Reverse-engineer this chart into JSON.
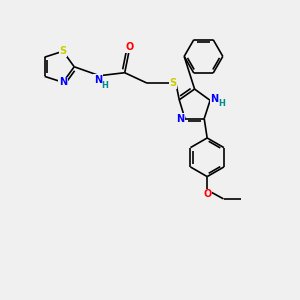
{
  "bg_color": "#f0f0f0",
  "bond_color": "#000000",
  "atom_colors": {
    "S": "#cccc00",
    "N": "#0000ff",
    "O": "#ff0000",
    "H": "#008b8b",
    "C": "#000000"
  },
  "bond_width": 1.2,
  "figsize": [
    3.0,
    3.0
  ],
  "dpi": 100
}
